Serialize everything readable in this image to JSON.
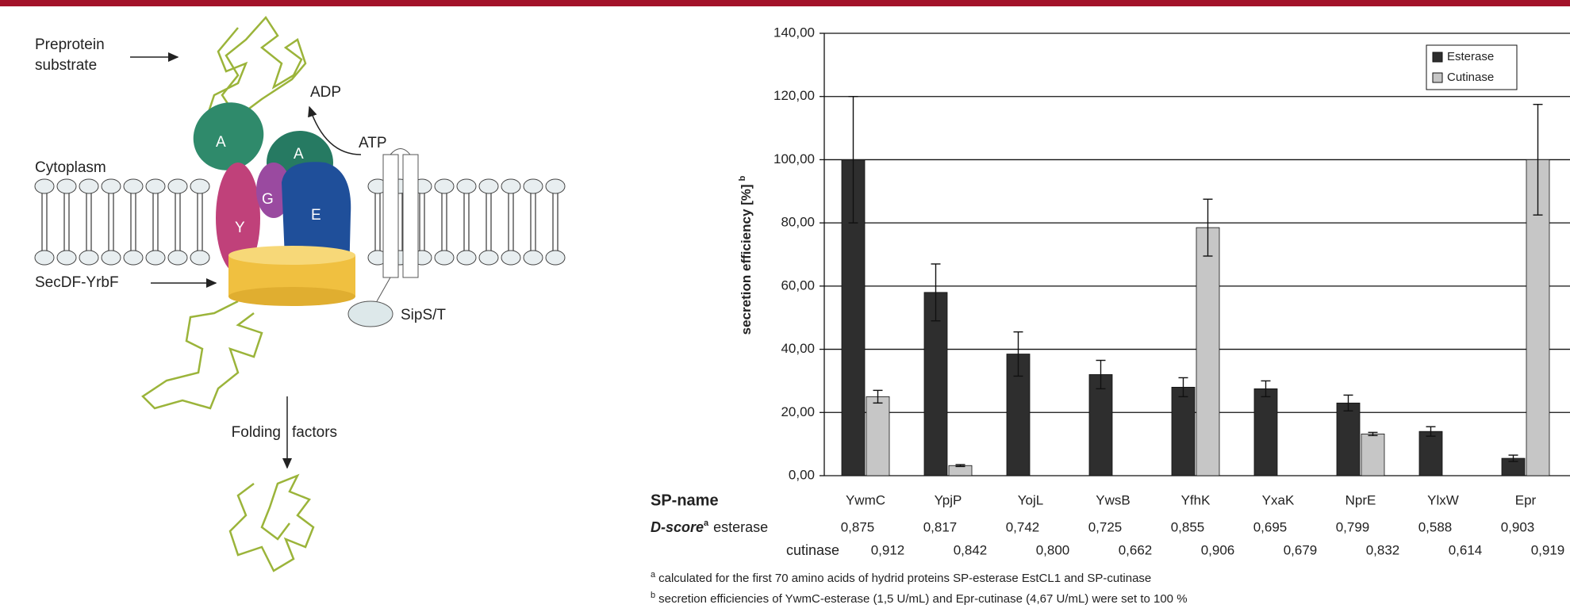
{
  "diagram": {
    "labels": {
      "preprotein_1": "Preprotein",
      "preprotein_2": "substrate",
      "adp": "ADP",
      "atp": "ATP",
      "cytoplasm": "Cytoplasm",
      "secdf": "SecDF-YrbF",
      "sips": "SipS/T",
      "folding_1": "Folding",
      "folding_2": "factors",
      "a1": "A",
      "a2": "A",
      "g": "G",
      "y": "Y",
      "e": "E"
    }
  },
  "chart_data": {
    "type": "bar",
    "ylabel": "secretion efficiency [%]",
    "ylabel_note": "b",
    "categories": [
      "YwmC",
      "YpjP",
      "YojL",
      "YwsB",
      "YfhK",
      "YxaK",
      "NprE",
      "YlxW",
      "Epr"
    ],
    "series": [
      {
        "name": "Esterase",
        "color": "#2e2e2e",
        "values": [
          100,
          58,
          38.5,
          32,
          28,
          27.5,
          23,
          14,
          5.5
        ],
        "errors": [
          20,
          9,
          7,
          4.5,
          3,
          2.5,
          2.5,
          1.5,
          1
        ]
      },
      {
        "name": "Cutinase",
        "color": "#c6c6c6",
        "values": [
          25,
          3.2,
          null,
          null,
          78.5,
          null,
          13.2,
          null,
          100
        ],
        "errors": [
          2,
          0.3,
          null,
          null,
          9,
          null,
          0.5,
          null,
          17.5
        ]
      }
    ],
    "ylim": [
      0,
      140
    ],
    "yticks": [
      {
        "value": 0,
        "label": "0,00"
      },
      {
        "value": 20,
        "label": "20,00"
      },
      {
        "value": 40,
        "label": "40,00"
      },
      {
        "value": 60,
        "label": "60,00"
      },
      {
        "value": 80,
        "label": "80,00"
      },
      {
        "value": 100,
        "label": "100,00"
      },
      {
        "value": 120,
        "label": "120,00"
      },
      {
        "value": 140,
        "label": "140,00"
      }
    ],
    "grid": true,
    "legend": "top-right"
  },
  "dscore_table": {
    "row_label": "SP-name",
    "dscore_label": "D-score",
    "dscore_sup": "a",
    "esterase_label": "esterase",
    "cutinase_label": "cutinase",
    "esterase": [
      "0,875",
      "0,817",
      "0,742",
      "0,725",
      "0,855",
      "0,695",
      "0,799",
      "0,588",
      "0,903"
    ],
    "cutinase": [
      "0,912",
      "0,842",
      "0,800",
      "0,662",
      "0,906",
      "0,679",
      "0,832",
      "0,614",
      "0,919"
    ]
  },
  "footnotes": [
    {
      "mark": "a",
      "text": "calculated for the first 70 amino acids of hydrid proteins SP-esterase EstCL1 and SP-cutinase"
    },
    {
      "mark": "b",
      "text": "secretion efficiencies of YwmC-esterase (1,5 U/mL) and Epr-cutinase (4,67 U/mL) were set to 100 %"
    }
  ]
}
